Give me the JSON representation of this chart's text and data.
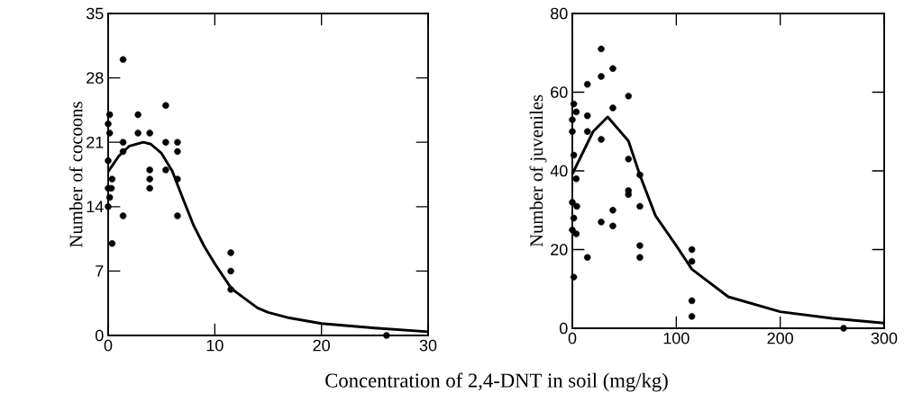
{
  "chart_data": [
    {
      "type": "scatter",
      "xlabel": "Concentration of 2,4-DNT in soil (mg/kg)",
      "ylabel": "Number of cocoons",
      "xlim": [
        0,
        30
      ],
      "ylim": [
        0,
        35
      ],
      "xticks": [
        0,
        10,
        20,
        30
      ],
      "yticks": [
        0,
        7,
        14,
        21,
        28,
        35
      ],
      "series": [
        {
          "color": "#000000",
          "marker": "circle",
          "x": [
            1.4,
            0.14,
            0,
            0.14,
            0,
            0,
            0.3,
            0.37,
            0.14,
            0,
            0.37,
            1.4,
            1.4,
            1.4,
            2.8,
            2.8,
            3.9,
            3.9,
            3.9,
            3.9,
            5.4,
            5.4,
            5.4,
            6.5,
            6.5,
            6.5,
            6.5,
            11.5,
            11.5,
            11.5,
            26.1
          ],
          "values": [
            30,
            24,
            23,
            22,
            19,
            16,
            16,
            17,
            15,
            14,
            10,
            21,
            20,
            13,
            24,
            22,
            22,
            18,
            17,
            16,
            25,
            21,
            18,
            21,
            20,
            17,
            13,
            9,
            7,
            5,
            0
          ]
        },
        {
          "type": "line",
          "color": "#000000",
          "line_style": "solid",
          "x": [
            0,
            1,
            2,
            3.3,
            4,
            5,
            6,
            7,
            8,
            9,
            10,
            11.5,
            12,
            14,
            15,
            17,
            20,
            25,
            30
          ],
          "values": [
            17.8,
            19.5,
            20.6,
            21,
            20.8,
            19.8,
            17.9,
            14.9,
            12,
            9.7,
            7.8,
            5.2,
            4.7,
            3,
            2.5,
            1.9,
            1.3,
            0.8,
            0.4
          ]
        }
      ]
    },
    {
      "type": "scatter",
      "ylabel": "Number of juveniles",
      "xlim": [
        0,
        300
      ],
      "ylim": [
        0,
        80
      ],
      "xticks": [
        0,
        100,
        200,
        300
      ],
      "yticks": [
        0,
        20,
        40,
        60,
        80
      ],
      "series": [
        {
          "color": "#000000",
          "marker": "circle",
          "x": [
            27.8,
            27.8,
            27.8,
            27.8,
            39,
            39,
            39,
            39,
            14.5,
            14.5,
            14.5,
            14.5,
            54,
            54,
            54,
            54,
            65,
            65,
            65,
            65,
            115,
            115,
            115,
            115,
            1.4,
            3.8,
            0,
            0,
            1.4,
            3.8,
            0,
            4.3,
            1.4,
            0,
            3.8,
            1.4,
            261
          ],
          "values": [
            71,
            64,
            48,
            27,
            66,
            56,
            30,
            26,
            62,
            54,
            50,
            18,
            59,
            43,
            35,
            34,
            39,
            31,
            21,
            18,
            20,
            17,
            7,
            3,
            57,
            55,
            53,
            50,
            44,
            38,
            32,
            31,
            28,
            25,
            24,
            13,
            0
          ]
        },
        {
          "type": "line",
          "color": "#000000",
          "line_style": "solid",
          "x": [
            0,
            10,
            20,
            34,
            54,
            65,
            80,
            100,
            115,
            150,
            200,
            250,
            300
          ],
          "values": [
            39.2,
            44.6,
            50,
            53.7,
            47.6,
            38.9,
            28.6,
            21,
            15,
            8,
            4.2,
            2.5,
            1.3
          ]
        }
      ]
    }
  ]
}
